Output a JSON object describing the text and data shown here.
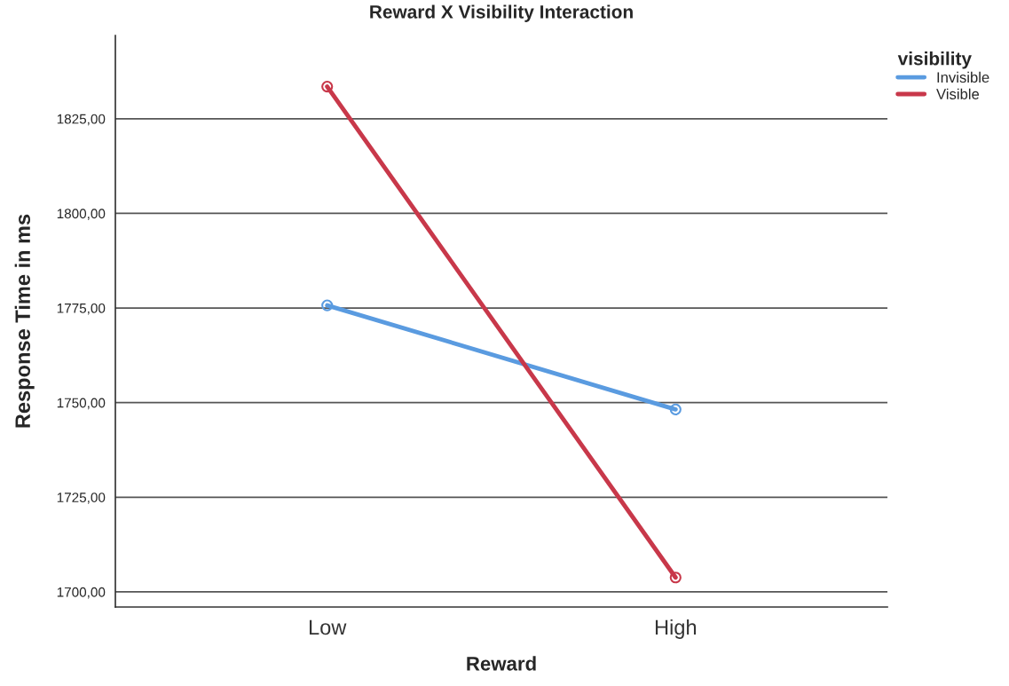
{
  "chart_data": {
    "type": "line",
    "title": "Reward X Visibility Interaction",
    "xlabel": "Reward",
    "ylabel": "Response Time in ms",
    "legend_title": "visibility",
    "categories": [
      "Low",
      "High"
    ],
    "series": [
      {
        "name": "Invisible",
        "color": "#5a9be0",
        "values": [
          1775.7,
          1748.2
        ]
      },
      {
        "name": "Visible",
        "color": "#c8384a",
        "values": [
          1833.5,
          1703.8
        ]
      }
    ],
    "ylim": [
      1696,
      1847
    ],
    "yticks": [
      {
        "value": 1700,
        "label": "1700,00"
      },
      {
        "value": 1725,
        "label": "1725,00"
      },
      {
        "value": 1750,
        "label": "1750,00"
      },
      {
        "value": 1775,
        "label": "1775,00"
      },
      {
        "value": 1800,
        "label": "1800,00"
      },
      {
        "value": 1825,
        "label": "1825,00"
      }
    ],
    "grid": "y",
    "legend": "top right",
    "marker": "circle",
    "line_style": "solid"
  }
}
